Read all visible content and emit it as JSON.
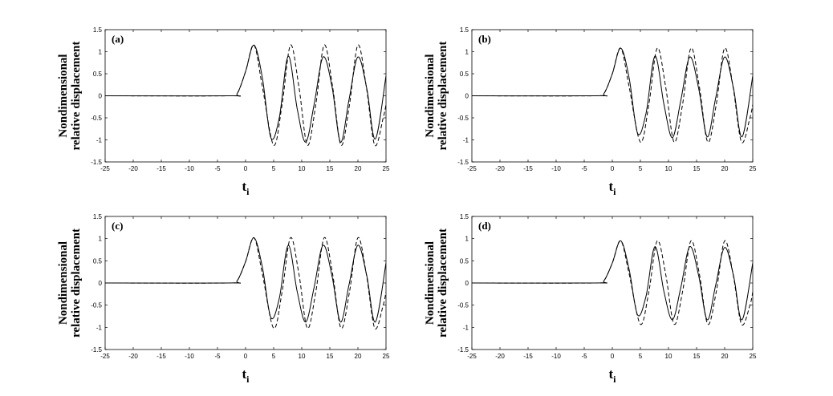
{
  "chart_data": [
    {
      "type": "line",
      "panel_label": "(a)",
      "xlabel": "t",
      "xlabel_sub": "i",
      "ylabel_line1": "Nondimensional",
      "ylabel_line2": "relative displacement",
      "xlim": [
        -25,
        25
      ],
      "ylim": [
        -1.5,
        1.5
      ],
      "xticks": [
        "-25",
        "-20",
        "-15",
        "-10",
        "-5",
        "0",
        "5",
        "10",
        "15",
        "20",
        "25"
      ],
      "yticks": [
        "-1.5",
        "-1",
        "-0.5",
        "0",
        "0.5",
        "1",
        "1.5"
      ],
      "grid": false,
      "series": [
        {
          "style": "solid",
          "x": [
            -25,
            -3,
            -1.5,
            0,
            1.5,
            3,
            4.5,
            6,
            7.6,
            9.2,
            10.7,
            12.2,
            13.8,
            15.4,
            16.9,
            18.4,
            20.0,
            21.6,
            23.1,
            25
          ],
          "y": [
            0,
            0,
            0.05,
            0.55,
            1.15,
            0.4,
            -0.95,
            -0.5,
            0.9,
            -0.3,
            -1.05,
            -0.2,
            0.88,
            0.2,
            -1.05,
            -0.1,
            0.88,
            0.15,
            -0.98,
            0.45
          ]
        },
        {
          "style": "dashed",
          "x": [
            -25,
            -3,
            -1.5,
            0,
            1.5,
            3,
            5,
            6.5,
            8,
            9.5,
            11,
            12.5,
            14,
            15.5,
            17,
            18.5,
            20,
            21.5,
            23,
            24.5,
            25
          ],
          "y": [
            0,
            0,
            0.05,
            0.55,
            1.15,
            0.2,
            -1.12,
            -0.2,
            1.15,
            0.2,
            -1.12,
            -0.2,
            1.15,
            0.2,
            -1.12,
            -0.2,
            1.15,
            0.2,
            -1.12,
            -0.5,
            -0.2
          ]
        }
      ]
    },
    {
      "type": "line",
      "panel_label": "(b)",
      "xlabel": "t",
      "xlabel_sub": "i",
      "ylabel_line1": "Nondimensional",
      "ylabel_line2": "relative displacement",
      "xlim": [
        -25,
        25
      ],
      "ylim": [
        -1.5,
        1.5
      ],
      "xticks": [
        "-25",
        "-20",
        "-15",
        "-10",
        "-5",
        "0",
        "5",
        "10",
        "15",
        "20",
        "25"
      ],
      "yticks": [
        "-1.5",
        "-1",
        "-0.5",
        "0",
        "0.5",
        "1",
        "1.5"
      ],
      "grid": false,
      "series": [
        {
          "style": "solid",
          "x": [
            -25,
            -3,
            -1.5,
            0,
            1.5,
            3,
            4.5,
            6,
            7.6,
            9.2,
            10.7,
            12.2,
            13.8,
            15.4,
            16.9,
            18.4,
            20.0,
            21.6,
            23.1,
            25
          ],
          "y": [
            0,
            0,
            0.05,
            0.5,
            1.08,
            0.4,
            -0.85,
            -0.4,
            0.9,
            -0.2,
            -0.95,
            -0.1,
            0.88,
            0.15,
            -0.93,
            -0.05,
            0.88,
            0.15,
            -0.93,
            0.45
          ]
        },
        {
          "style": "dashed",
          "x": [
            -25,
            -3,
            -1.5,
            0,
            1.5,
            3,
            5,
            6.5,
            8,
            9.5,
            11,
            12.5,
            14,
            15.5,
            17,
            18.5,
            20,
            21.5,
            23,
            24.5,
            25
          ],
          "y": [
            0,
            0,
            0.05,
            0.5,
            1.08,
            0.2,
            -1.05,
            -0.2,
            1.08,
            0.2,
            -1.05,
            -0.2,
            1.08,
            0.2,
            -1.05,
            -0.2,
            1.08,
            0.2,
            -1.05,
            -0.5,
            -0.2
          ]
        }
      ]
    },
    {
      "type": "line",
      "panel_label": "(c)",
      "xlabel": "t",
      "xlabel_sub": "i",
      "ylabel_line1": "Nondimensional",
      "ylabel_line2": "relative displacement",
      "xlim": [
        -25,
        25
      ],
      "ylim": [
        -1.5,
        1.5
      ],
      "xticks": [
        "-25",
        "-20",
        "-15",
        "-10",
        "-5",
        "0",
        "5",
        "10",
        "15",
        "20",
        "25"
      ],
      "yticks": [
        "-1.5",
        "-1",
        "-0.5",
        "0",
        "0.5",
        "1",
        "1.5"
      ],
      "grid": false,
      "series": [
        {
          "style": "solid",
          "x": [
            -25,
            -3,
            -1.5,
            0,
            1.5,
            3,
            4.5,
            6,
            7.6,
            9.2,
            10.7,
            12.2,
            13.8,
            15.4,
            16.9,
            18.4,
            20.0,
            21.6,
            23.1,
            25
          ],
          "y": [
            0,
            0,
            0.05,
            0.48,
            1.02,
            0.35,
            -0.78,
            -0.35,
            0.85,
            -0.2,
            -0.88,
            -0.1,
            0.85,
            0.15,
            -0.88,
            -0.05,
            0.85,
            0.15,
            -0.88,
            0.45
          ]
        },
        {
          "style": "dashed",
          "x": [
            -25,
            -3,
            -1.5,
            0,
            1.5,
            3,
            5,
            6.5,
            8,
            9.5,
            11,
            12.5,
            14,
            15.5,
            17,
            18.5,
            20,
            21.5,
            23,
            24.5,
            25
          ],
          "y": [
            0,
            0,
            0.05,
            0.48,
            1.02,
            0.2,
            -1.02,
            -0.2,
            1.02,
            0.2,
            -1.02,
            -0.2,
            1.02,
            0.2,
            -1.02,
            -0.2,
            1.02,
            0.2,
            -1.02,
            -0.5,
            -0.2
          ]
        }
      ]
    },
    {
      "type": "line",
      "panel_label": "(d)",
      "xlabel": "t",
      "xlabel_sub": "i",
      "ylabel_line1": "Nondimensional",
      "ylabel_line2": "relative displacement",
      "xlim": [
        -25,
        25
      ],
      "ylim": [
        -1.5,
        1.5
      ],
      "xticks": [
        "-25",
        "-20",
        "-15",
        "-10",
        "-5",
        "0",
        "5",
        "10",
        "15",
        "20",
        "25"
      ],
      "yticks": [
        "-1.5",
        "-1",
        "-0.5",
        "0",
        "0.5",
        "1",
        "1.5"
      ],
      "grid": false,
      "series": [
        {
          "style": "solid",
          "x": [
            -25,
            -3,
            -1.5,
            0,
            1.5,
            3,
            4.5,
            6,
            7.6,
            9.2,
            10.7,
            12.2,
            13.8,
            15.4,
            16.9,
            18.4,
            20.0,
            21.6,
            23.1,
            25
          ],
          "y": [
            0,
            0,
            0.05,
            0.45,
            0.95,
            0.3,
            -0.72,
            -0.3,
            0.82,
            -0.2,
            -0.83,
            -0.1,
            0.82,
            0.15,
            -0.83,
            -0.05,
            0.8,
            0.15,
            -0.83,
            0.45
          ]
        },
        {
          "style": "dashed",
          "x": [
            -25,
            -3,
            -1.5,
            0,
            1.5,
            3,
            5,
            6.5,
            8,
            9.5,
            11,
            12.5,
            14,
            15.5,
            17,
            18.5,
            20,
            21.5,
            23,
            24.5,
            25
          ],
          "y": [
            0,
            0,
            0.05,
            0.45,
            0.95,
            0.2,
            -0.93,
            -0.2,
            0.95,
            0.2,
            -0.93,
            -0.2,
            0.95,
            0.2,
            -0.93,
            -0.2,
            0.95,
            0.2,
            -0.93,
            -0.5,
            -0.2
          ]
        }
      ]
    }
  ]
}
